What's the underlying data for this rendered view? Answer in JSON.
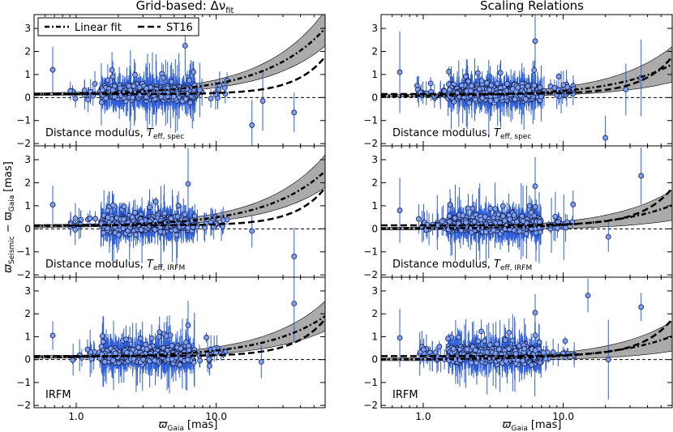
{
  "chart_data": {
    "type": "scatter",
    "figure_type": "3x2 grid of scatter plots with error bars and fit curves",
    "xlabel": "ϖ",
    "xlabel_sub": "Gaia",
    "xlabel_unit": "[mas]",
    "ylabel": "ϖ",
    "ylabel_sub1": "Seismic",
    "ylabel_mid": " − ϖ",
    "ylabel_sub2": "Gaia",
    "ylabel_unit": "[mas]",
    "xscale": "log",
    "xlim": [
      0.5,
      60
    ],
    "ylim": [
      -2.1,
      3.6
    ],
    "xticks": [
      1.0,
      10.0
    ],
    "xtick_labels": [
      "1.0",
      "10.0"
    ],
    "yticks": [
      -2,
      -1,
      0,
      1,
      2,
      3
    ],
    "ytick_labels": [
      "−2",
      "−1",
      "0",
      "1",
      "2",
      "3"
    ],
    "legend": {
      "placement": "top-left",
      "entries": [
        {
          "label": "Linear fit",
          "style": "dash-dot"
        },
        {
          "label": "ST16",
          "style": "dashed"
        }
      ]
    },
    "column_titles": [
      {
        "text": "Grid-based: Δν",
        "sub": "fit"
      },
      {
        "text": "Scaling Relations",
        "sub": ""
      }
    ],
    "panels": [
      {
        "column": 0,
        "row": 0,
        "label": "Distance modulus, T",
        "label_sub": "eff, spec",
        "linear_fit": {
          "intercept": 0.12,
          "slope": 0.048
        },
        "band_halfwidth_slope": 0.012,
        "st16": {
          "base": 0.15,
          "coef": 0.00045
        }
      },
      {
        "column": 0,
        "row": 1,
        "label": "Distance modulus, T",
        "label_sub": "eff, IRFM",
        "linear_fit": {
          "intercept": 0.1,
          "slope": 0.04
        },
        "band_halfwidth_slope": 0.011,
        "st16": {
          "base": 0.15,
          "coef": 0.00045
        }
      },
      {
        "column": 0,
        "row": 2,
        "label": "IRFM",
        "label_sub": "",
        "linear_fit": {
          "intercept": 0.1,
          "slope": 0.03
        },
        "band_halfwidth_slope": 0.01,
        "st16": {
          "base": 0.15,
          "coef": 0.00045
        }
      },
      {
        "column": 1,
        "row": 0,
        "label": "Distance modulus, T",
        "label_sub": "eff, spec",
        "linear_fit": {
          "intercept": 0.06,
          "slope": 0.023
        },
        "band_halfwidth_slope": 0.012,
        "st16": {
          "base": 0.15,
          "coef": 0.00045
        }
      },
      {
        "column": 1,
        "row": 1,
        "label": "Distance modulus, T",
        "label_sub": "eff, IRFM",
        "linear_fit": {
          "intercept": 0.0,
          "slope": 0.017
        },
        "band_halfwidth_slope": 0.01,
        "st16": {
          "base": 0.15,
          "coef": 0.00045
        }
      },
      {
        "column": 1,
        "row": 2,
        "label": "IRFM",
        "label_sub": "",
        "linear_fit": {
          "intercept": 0.0,
          "slope": 0.017
        },
        "band_halfwidth_slope": 0.01,
        "st16": {
          "base": 0.15,
          "coef": 0.00045
        }
      }
    ],
    "reference_line_y": 0,
    "scatter_summary": "approx. 600 stars per panel, parallax mostly 1.5–7 mas, differences mostly −0.6 to 1.2 mas with blue error bars",
    "outliers": [
      {
        "panel": 0,
        "x": 0.68,
        "y": 1.2
      },
      {
        "panel": 0,
        "x": 6.0,
        "y": 2.25
      },
      {
        "panel": 0,
        "x": 18.0,
        "y": -1.2
      },
      {
        "panel": 0,
        "x": 36.0,
        "y": -0.65
      },
      {
        "panel": 0,
        "x": 21.5,
        "y": -0.15
      },
      {
        "panel": 1,
        "x": 0.68,
        "y": 1.05
      },
      {
        "panel": 1,
        "x": 6.3,
        "y": 1.95
      },
      {
        "panel": 1,
        "x": 18.0,
        "y": -0.1
      },
      {
        "panel": 1,
        "x": 36.0,
        "y": -1.2
      },
      {
        "panel": 2,
        "x": 0.68,
        "y": 1.05
      },
      {
        "panel": 2,
        "x": 6.3,
        "y": 1.5
      },
      {
        "panel": 2,
        "x": 36.0,
        "y": 2.45
      },
      {
        "panel": 2,
        "x": 21.0,
        "y": -0.1
      },
      {
        "panel": 3,
        "x": 0.68,
        "y": 1.1
      },
      {
        "panel": 3,
        "x": 6.3,
        "y": 2.45
      },
      {
        "panel": 3,
        "x": 20.0,
        "y": -1.75
      },
      {
        "panel": 3,
        "x": 36.0,
        "y": 0.85
      },
      {
        "panel": 3,
        "x": 28.0,
        "y": 0.35
      },
      {
        "panel": 4,
        "x": 0.68,
        "y": 0.8
      },
      {
        "panel": 4,
        "x": 6.3,
        "y": 1.85
      },
      {
        "panel": 4,
        "x": 36.0,
        "y": 2.3
      },
      {
        "panel": 4,
        "x": 21.0,
        "y": -0.35
      },
      {
        "panel": 5,
        "x": 0.68,
        "y": 0.95
      },
      {
        "panel": 5,
        "x": 6.3,
        "y": 2.05
      },
      {
        "panel": 5,
        "x": 15.0,
        "y": 2.8
      },
      {
        "panel": 5,
        "x": 36.0,
        "y": 2.3
      },
      {
        "panel": 5,
        "x": 21.0,
        "y": 0.0
      }
    ]
  }
}
